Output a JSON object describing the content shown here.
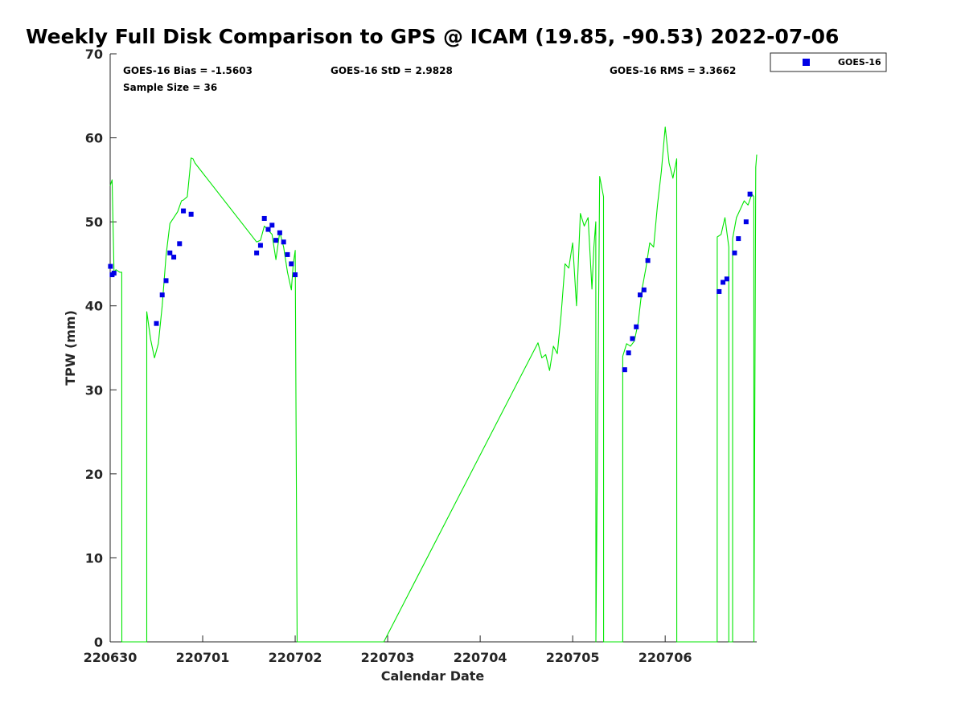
{
  "chart_data": {
    "type": "scatter",
    "title": "Weekly Full Disk Comparison to GPS @ ICAM (19.85, -90.53) 2022-07-06",
    "xlabel": "Calendar Date",
    "ylabel": "TPW (mm)",
    "x_ticks": [
      "220630",
      "220701",
      "220702",
      "220703",
      "220704",
      "220705",
      "220706"
    ],
    "x_range": [
      "2022-06-30 00:00",
      "2022-07-06 23:45"
    ],
    "ylim": [
      0,
      70
    ],
    "y_ticks": [
      0,
      10,
      20,
      30,
      40,
      50,
      60,
      70
    ],
    "grid": false,
    "legend_position": "top-right",
    "stats": {
      "bias": "GOES-16 Bias = -1.5603",
      "std": "GOES-16 StD = 2.9828",
      "rms": "GOES-16 RMS = 3.3662",
      "sample": "Sample Size = 36"
    },
    "series": [
      {
        "name": "GOES-16",
        "kind": "scatter",
        "marker": "square",
        "color": "#0000e6",
        "x": [
          "2022-06-30 00:05",
          "2022-06-30 00:30",
          "2022-06-30 01:00",
          "2022-06-30 12:00",
          "2022-06-30 13:30",
          "2022-06-30 14:30",
          "2022-06-30 15:30",
          "2022-06-30 16:30",
          "2022-06-30 18:00",
          "2022-06-30 19:00",
          "2022-06-30 21:00",
          "2022-07-01 14:00",
          "2022-07-01 15:00",
          "2022-07-01 16:00",
          "2022-07-01 17:00",
          "2022-07-01 18:00",
          "2022-07-01 19:00",
          "2022-07-01 20:00",
          "2022-07-01 21:00",
          "2022-07-01 22:00",
          "2022-07-01 23:00",
          "2022-07-02 00:00",
          "2022-07-05 13:30",
          "2022-07-05 14:30",
          "2022-07-05 15:30",
          "2022-07-05 16:30",
          "2022-07-05 17:30",
          "2022-07-05 18:30",
          "2022-07-05 19:30",
          "2022-07-06 14:00",
          "2022-07-06 15:00",
          "2022-07-06 16:00",
          "2022-07-06 18:00",
          "2022-07-06 19:00",
          "2022-07-06 21:00",
          "2022-07-06 22:00"
        ],
        "y": [
          44.7,
          43.7,
          43.9,
          37.9,
          41.3,
          43.0,
          46.3,
          45.8,
          47.4,
          51.3,
          50.9,
          46.3,
          47.2,
          50.4,
          49.1,
          49.6,
          47.8,
          48.7,
          47.6,
          46.1,
          45.0,
          43.7,
          32.4,
          34.4,
          36.1,
          37.5,
          41.3,
          41.9,
          45.4,
          41.7,
          42.8,
          43.2,
          46.3,
          48.0,
          50.0,
          53.3
        ]
      },
      {
        "name": "",
        "kind": "line",
        "color": "#00e600",
        "x": [
          "2022-06-30 00:00",
          "2022-06-30 00:30",
          "2022-06-30 01:00",
          "2022-06-30 01:30",
          "2022-06-30 02:30",
          "2022-06-30 03:00",
          "2022-06-30 03:01",
          "2022-06-30 09:29",
          "2022-06-30 09:30",
          "2022-06-30 10:30",
          "2022-06-30 11:30",
          "2022-06-30 12:30",
          "2022-06-30 13:30",
          "2022-06-30 14:30",
          "2022-06-30 15:30",
          "2022-06-30 16:30",
          "2022-06-30 17:30",
          "2022-06-30 18:30",
          "2022-06-30 19:00",
          "2022-06-30 20:00",
          "2022-06-30 21:00",
          "2022-06-30 21:30",
          "2022-06-30 22:00",
          "2022-07-01 14:00",
          "2022-07-01 15:00",
          "2022-07-01 16:00",
          "2022-07-01 17:00",
          "2022-07-01 18:00",
          "2022-07-01 19:00",
          "2022-07-01 20:00",
          "2022-07-01 21:00",
          "2022-07-01 22:00",
          "2022-07-01 23:00",
          "2022-07-01 23:30",
          "2022-07-02 00:00",
          "2022-07-02 00:30",
          "2022-07-02 00:31",
          "2022-07-02 22:59",
          "2022-07-02 23:00",
          "2022-07-04 15:00",
          "2022-07-04 16:00",
          "2022-07-04 17:00",
          "2022-07-04 18:00",
          "2022-07-04 19:00",
          "2022-07-04 20:00",
          "2022-07-04 21:00",
          "2022-07-04 22:00",
          "2022-07-04 23:00",
          "2022-07-05 00:00",
          "2022-07-05 01:00",
          "2022-07-05 02:00",
          "2022-07-05 03:00",
          "2022-07-05 04:00",
          "2022-07-05 05:00",
          "2022-07-05 05:30",
          "2022-07-05 06:00",
          "2022-07-05 06:01",
          "2022-07-05 07:00",
          "2022-07-05 08:00",
          "2022-07-05 08:01",
          "2022-07-05 12:59",
          "2022-07-05 13:00",
          "2022-07-05 14:00",
          "2022-07-05 15:00",
          "2022-07-05 16:00",
          "2022-07-05 17:00",
          "2022-07-05 18:00",
          "2022-07-05 19:00",
          "2022-07-05 20:00",
          "2022-07-05 21:00",
          "2022-07-05 22:00",
          "2022-07-05 23:00",
          "2022-07-06 00:00",
          "2022-07-06 01:00",
          "2022-07-06 02:00",
          "2022-07-06 03:00",
          "2022-07-06 03:01",
          "2022-07-06 13:29",
          "2022-07-06 13:30",
          "2022-07-06 14:30",
          "2022-07-06 15:30",
          "2022-07-06 16:30",
          "2022-07-06 16:31",
          "2022-07-06 17:29",
          "2022-07-06 17:30",
          "2022-07-06 18:30",
          "2022-07-06 19:30",
          "2022-07-06 20:30",
          "2022-07-06 21:30",
          "2022-07-06 22:30",
          "2022-07-06 23:00",
          "2022-07-06 23:01",
          "2022-07-06 23:30",
          "2022-07-06 23:45"
        ],
        "y": [
          54.3,
          55.0,
          44.0,
          44.3,
          44.0,
          44.0,
          0.0,
          0.0,
          39.3,
          36.0,
          33.8,
          35.5,
          40.0,
          46.0,
          49.8,
          50.5,
          51.2,
          52.5,
          52.6,
          53.0,
          57.6,
          57.5,
          57.0,
          47.6,
          47.8,
          49.5,
          49.0,
          48.5,
          45.5,
          48.8,
          47.0,
          44.0,
          41.9,
          45.0,
          46.6,
          0.0,
          0.0,
          0.0,
          0.0,
          35.6,
          33.8,
          34.2,
          32.3,
          35.2,
          34.3,
          39.0,
          45.0,
          44.5,
          47.5,
          40.0,
          51.0,
          49.5,
          50.5,
          42.0,
          47.0,
          50.0,
          0.0,
          55.4,
          53.0,
          0.0,
          0.0,
          34.0,
          35.5,
          35.2,
          35.8,
          38.0,
          42.0,
          44.5,
          47.5,
          47.0,
          52.0,
          56.0,
          61.3,
          57.0,
          55.2,
          57.5,
          0.0,
          0.0,
          48.2,
          48.5,
          50.5,
          47.0,
          0.0,
          0.0,
          48.0,
          50.5,
          51.5,
          52.5,
          52.0,
          53.3,
          53.0,
          0.0,
          56.5,
          58.0
        ]
      }
    ]
  }
}
